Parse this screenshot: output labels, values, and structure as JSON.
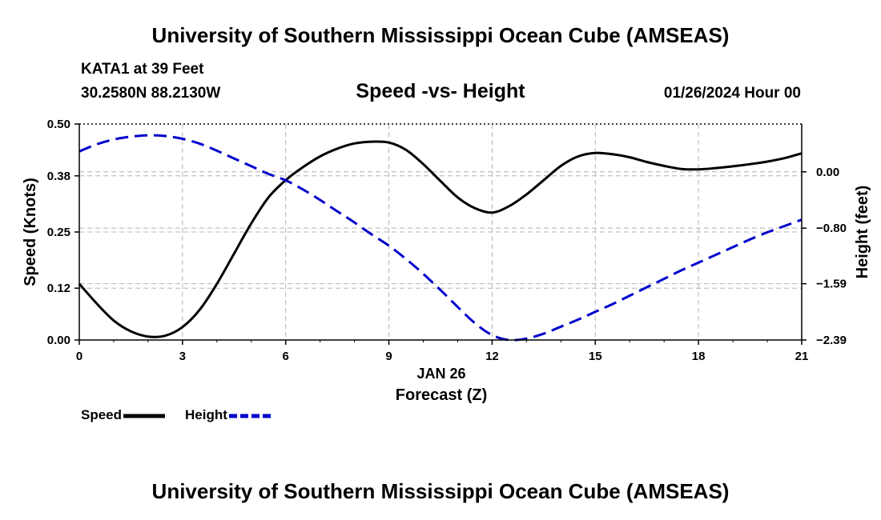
{
  "header": {
    "title": "University of Southern Mississippi Ocean Cube (AMSEAS)",
    "station": "KATA1 at 39 Feet",
    "coords": "30.2580N  88.2130W",
    "subtitle": "Speed -vs- Height",
    "datetime": "01/26/2024 Hour 00"
  },
  "footer": {
    "title": "University of Southern Mississippi Ocean Cube (AMSEAS)"
  },
  "legend": {
    "speed_label": "Speed",
    "height_label": "Height"
  },
  "colors": {
    "speed": "#000000",
    "height": "#0000cc",
    "grid": "#b4b4b4"
  },
  "chart_data": {
    "type": "line",
    "xlabel_date": "JAN 26",
    "xlabel": "Forecast (Z)",
    "ylabel": "Speed (Knots)",
    "y2label": "Height (feet)",
    "xlim": [
      0,
      21
    ],
    "ylim": [
      0,
      0.5
    ],
    "y2lim": [
      -2.39,
      0.68
    ],
    "x_ticks": [
      0,
      3,
      6,
      9,
      12,
      15,
      18,
      21
    ],
    "x_tick_labels": [
      "0",
      "3",
      "6",
      "9",
      "12",
      "15",
      "18",
      "21"
    ],
    "y_ticks": [
      0.0,
      0.12,
      0.25,
      0.38,
      0.5
    ],
    "y_tick_labels": [
      "0.00",
      "0.12",
      "0.25",
      "0.38",
      "0.50"
    ],
    "y2_ticks": [
      0.0,
      -0.8,
      -1.59,
      -2.39
    ],
    "y2_tick_labels": [
      "0.00",
      "−0.80",
      "−1.59",
      "−2.39"
    ],
    "series": [
      {
        "name": "Speed",
        "axis": "left",
        "style": "solid",
        "x": [
          0,
          0.5,
          1,
          1.5,
          2,
          2.5,
          3,
          3.5,
          4,
          4.5,
          5,
          5.5,
          6,
          6.5,
          7,
          7.5,
          8,
          8.5,
          9,
          9.5,
          10,
          10.5,
          11,
          11.5,
          12,
          12.5,
          13,
          13.5,
          14,
          14.5,
          15,
          15.5,
          16,
          16.5,
          17,
          17.5,
          18,
          18.5,
          19,
          19.5,
          20,
          20.5,
          21
        ],
        "values": [
          0.13,
          0.085,
          0.045,
          0.02,
          0.008,
          0.01,
          0.03,
          0.07,
          0.13,
          0.2,
          0.27,
          0.33,
          0.37,
          0.4,
          0.425,
          0.443,
          0.455,
          0.459,
          0.457,
          0.44,
          0.407,
          0.368,
          0.33,
          0.305,
          0.295,
          0.31,
          0.337,
          0.37,
          0.403,
          0.425,
          0.433,
          0.43,
          0.423,
          0.412,
          0.403,
          0.396,
          0.395,
          0.398,
          0.402,
          0.407,
          0.413,
          0.421,
          0.432
        ]
      },
      {
        "name": "Height",
        "axis": "right",
        "style": "dashed",
        "x": [
          0,
          0.5,
          1,
          1.5,
          2,
          2.5,
          3,
          3.5,
          4,
          4.5,
          5,
          5.5,
          6,
          6.5,
          7,
          7.5,
          8,
          8.5,
          9,
          9.5,
          10,
          10.5,
          11,
          11.5,
          12,
          12.5,
          13,
          13.5,
          14,
          14.5,
          15,
          15.5,
          16,
          16.5,
          17,
          17.5,
          18,
          18.5,
          19,
          19.5,
          20,
          20.5,
          21
        ],
        "values": [
          0.29,
          0.39,
          0.46,
          0.5,
          0.52,
          0.51,
          0.47,
          0.4,
          0.3,
          0.19,
          0.08,
          -0.03,
          -0.12,
          -0.25,
          -0.4,
          -0.56,
          -0.72,
          -0.89,
          -1.05,
          -1.24,
          -1.45,
          -1.68,
          -1.92,
          -2.15,
          -2.32,
          -2.39,
          -2.37,
          -2.3,
          -2.2,
          -2.1,
          -1.99,
          -1.88,
          -1.76,
          -1.64,
          -1.52,
          -1.4,
          -1.29,
          -1.18,
          -1.07,
          -0.96,
          -0.86,
          -0.77,
          -0.68
        ]
      }
    ]
  }
}
